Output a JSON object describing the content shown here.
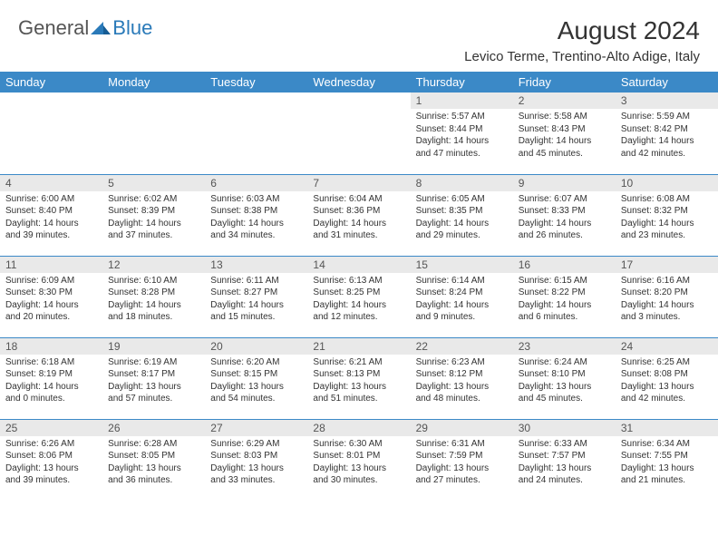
{
  "logo": {
    "general": "General",
    "blue": "Blue"
  },
  "title": "August 2024",
  "location": "Levico Terme, Trentino-Alto Adige, Italy",
  "colors": {
    "header_bg": "#3b89c7",
    "header_fg": "#ffffff",
    "logo_blue": "#2a7ab9",
    "daynum_bg": "#e9e9e9",
    "rule": "#3b89c7"
  },
  "weekdays": [
    "Sunday",
    "Monday",
    "Tuesday",
    "Wednesday",
    "Thursday",
    "Friday",
    "Saturday"
  ],
  "weeks": [
    [
      {
        "n": "",
        "sr": "",
        "ss": "",
        "dl1": "",
        "dl2": ""
      },
      {
        "n": "",
        "sr": "",
        "ss": "",
        "dl1": "",
        "dl2": ""
      },
      {
        "n": "",
        "sr": "",
        "ss": "",
        "dl1": "",
        "dl2": ""
      },
      {
        "n": "",
        "sr": "",
        "ss": "",
        "dl1": "",
        "dl2": ""
      },
      {
        "n": "1",
        "sr": "Sunrise: 5:57 AM",
        "ss": "Sunset: 8:44 PM",
        "dl1": "Daylight: 14 hours",
        "dl2": "and 47 minutes."
      },
      {
        "n": "2",
        "sr": "Sunrise: 5:58 AM",
        "ss": "Sunset: 8:43 PM",
        "dl1": "Daylight: 14 hours",
        "dl2": "and 45 minutes."
      },
      {
        "n": "3",
        "sr": "Sunrise: 5:59 AM",
        "ss": "Sunset: 8:42 PM",
        "dl1": "Daylight: 14 hours",
        "dl2": "and 42 minutes."
      }
    ],
    [
      {
        "n": "4",
        "sr": "Sunrise: 6:00 AM",
        "ss": "Sunset: 8:40 PM",
        "dl1": "Daylight: 14 hours",
        "dl2": "and 39 minutes."
      },
      {
        "n": "5",
        "sr": "Sunrise: 6:02 AM",
        "ss": "Sunset: 8:39 PM",
        "dl1": "Daylight: 14 hours",
        "dl2": "and 37 minutes."
      },
      {
        "n": "6",
        "sr": "Sunrise: 6:03 AM",
        "ss": "Sunset: 8:38 PM",
        "dl1": "Daylight: 14 hours",
        "dl2": "and 34 minutes."
      },
      {
        "n": "7",
        "sr": "Sunrise: 6:04 AM",
        "ss": "Sunset: 8:36 PM",
        "dl1": "Daylight: 14 hours",
        "dl2": "and 31 minutes."
      },
      {
        "n": "8",
        "sr": "Sunrise: 6:05 AM",
        "ss": "Sunset: 8:35 PM",
        "dl1": "Daylight: 14 hours",
        "dl2": "and 29 minutes."
      },
      {
        "n": "9",
        "sr": "Sunrise: 6:07 AM",
        "ss": "Sunset: 8:33 PM",
        "dl1": "Daylight: 14 hours",
        "dl2": "and 26 minutes."
      },
      {
        "n": "10",
        "sr": "Sunrise: 6:08 AM",
        "ss": "Sunset: 8:32 PM",
        "dl1": "Daylight: 14 hours",
        "dl2": "and 23 minutes."
      }
    ],
    [
      {
        "n": "11",
        "sr": "Sunrise: 6:09 AM",
        "ss": "Sunset: 8:30 PM",
        "dl1": "Daylight: 14 hours",
        "dl2": "and 20 minutes."
      },
      {
        "n": "12",
        "sr": "Sunrise: 6:10 AM",
        "ss": "Sunset: 8:28 PM",
        "dl1": "Daylight: 14 hours",
        "dl2": "and 18 minutes."
      },
      {
        "n": "13",
        "sr": "Sunrise: 6:11 AM",
        "ss": "Sunset: 8:27 PM",
        "dl1": "Daylight: 14 hours",
        "dl2": "and 15 minutes."
      },
      {
        "n": "14",
        "sr": "Sunrise: 6:13 AM",
        "ss": "Sunset: 8:25 PM",
        "dl1": "Daylight: 14 hours",
        "dl2": "and 12 minutes."
      },
      {
        "n": "15",
        "sr": "Sunrise: 6:14 AM",
        "ss": "Sunset: 8:24 PM",
        "dl1": "Daylight: 14 hours",
        "dl2": "and 9 minutes."
      },
      {
        "n": "16",
        "sr": "Sunrise: 6:15 AM",
        "ss": "Sunset: 8:22 PM",
        "dl1": "Daylight: 14 hours",
        "dl2": "and 6 minutes."
      },
      {
        "n": "17",
        "sr": "Sunrise: 6:16 AM",
        "ss": "Sunset: 8:20 PM",
        "dl1": "Daylight: 14 hours",
        "dl2": "and 3 minutes."
      }
    ],
    [
      {
        "n": "18",
        "sr": "Sunrise: 6:18 AM",
        "ss": "Sunset: 8:19 PM",
        "dl1": "Daylight: 14 hours",
        "dl2": "and 0 minutes."
      },
      {
        "n": "19",
        "sr": "Sunrise: 6:19 AM",
        "ss": "Sunset: 8:17 PM",
        "dl1": "Daylight: 13 hours",
        "dl2": "and 57 minutes."
      },
      {
        "n": "20",
        "sr": "Sunrise: 6:20 AM",
        "ss": "Sunset: 8:15 PM",
        "dl1": "Daylight: 13 hours",
        "dl2": "and 54 minutes."
      },
      {
        "n": "21",
        "sr": "Sunrise: 6:21 AM",
        "ss": "Sunset: 8:13 PM",
        "dl1": "Daylight: 13 hours",
        "dl2": "and 51 minutes."
      },
      {
        "n": "22",
        "sr": "Sunrise: 6:23 AM",
        "ss": "Sunset: 8:12 PM",
        "dl1": "Daylight: 13 hours",
        "dl2": "and 48 minutes."
      },
      {
        "n": "23",
        "sr": "Sunrise: 6:24 AM",
        "ss": "Sunset: 8:10 PM",
        "dl1": "Daylight: 13 hours",
        "dl2": "and 45 minutes."
      },
      {
        "n": "24",
        "sr": "Sunrise: 6:25 AM",
        "ss": "Sunset: 8:08 PM",
        "dl1": "Daylight: 13 hours",
        "dl2": "and 42 minutes."
      }
    ],
    [
      {
        "n": "25",
        "sr": "Sunrise: 6:26 AM",
        "ss": "Sunset: 8:06 PM",
        "dl1": "Daylight: 13 hours",
        "dl2": "and 39 minutes."
      },
      {
        "n": "26",
        "sr": "Sunrise: 6:28 AM",
        "ss": "Sunset: 8:05 PM",
        "dl1": "Daylight: 13 hours",
        "dl2": "and 36 minutes."
      },
      {
        "n": "27",
        "sr": "Sunrise: 6:29 AM",
        "ss": "Sunset: 8:03 PM",
        "dl1": "Daylight: 13 hours",
        "dl2": "and 33 minutes."
      },
      {
        "n": "28",
        "sr": "Sunrise: 6:30 AM",
        "ss": "Sunset: 8:01 PM",
        "dl1": "Daylight: 13 hours",
        "dl2": "and 30 minutes."
      },
      {
        "n": "29",
        "sr": "Sunrise: 6:31 AM",
        "ss": "Sunset: 7:59 PM",
        "dl1": "Daylight: 13 hours",
        "dl2": "and 27 minutes."
      },
      {
        "n": "30",
        "sr": "Sunrise: 6:33 AM",
        "ss": "Sunset: 7:57 PM",
        "dl1": "Daylight: 13 hours",
        "dl2": "and 24 minutes."
      },
      {
        "n": "31",
        "sr": "Sunrise: 6:34 AM",
        "ss": "Sunset: 7:55 PM",
        "dl1": "Daylight: 13 hours",
        "dl2": "and 21 minutes."
      }
    ]
  ]
}
